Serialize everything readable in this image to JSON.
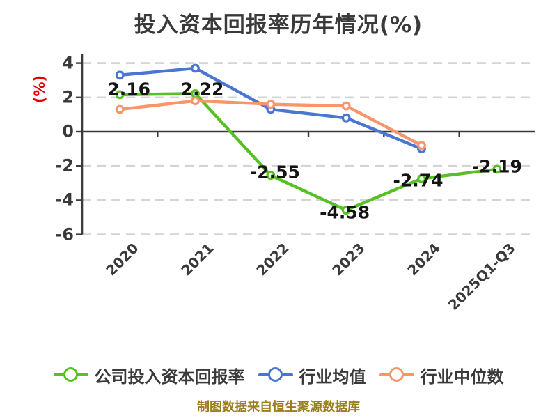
{
  "title": "投入资本回报率历年情况(%)",
  "ylabel": "(%)",
  "source_note": "制图数据来自恒生聚源数据库",
  "colors": {
    "title_text": "#3a3a3a",
    "axis": "#3b3b3b",
    "grid": "#d4d4d4",
    "tick_text": "#3a3a3a",
    "data_label": "#141414",
    "ylabel_red": "#e40000",
    "footer_gold": "#9c7e1c",
    "series_green": "#55c122",
    "series_blue": "#4876d0",
    "series_orange": "#f6966a",
    "background": "#ffffff"
  },
  "chart_data": {
    "type": "line",
    "title": "投入资本回报率历年情况(%)",
    "xlabel": "",
    "ylabel": "(%)",
    "categories": [
      "2020",
      "2021",
      "2022",
      "2023",
      "2024",
      "2025Q1-Q3"
    ],
    "y_ticks": [
      4,
      2,
      0,
      -2,
      -4,
      -6
    ],
    "y_tick_labels": [
      "4",
      "2",
      "0",
      "-2",
      "-4",
      "-6"
    ],
    "ylim": [
      -6,
      4.5
    ],
    "grid": "horizontal-dashed",
    "legend_position": "bottom",
    "series": [
      {
        "name": "公司投入资本回报率",
        "color": "#55c122",
        "values": [
          2.16,
          2.22,
          -2.55,
          -4.58,
          -2.74,
          -2.19
        ],
        "labels": [
          "2.16",
          "2.22",
          "-2.55",
          "-4.58",
          "-2.74",
          "-2.19"
        ]
      },
      {
        "name": "行业均值",
        "color": "#4876d0",
        "values": [
          3.3,
          3.7,
          1.3,
          0.8,
          -1.0,
          null
        ],
        "labels": []
      },
      {
        "name": "行业中位数",
        "color": "#f6966a",
        "values": [
          1.3,
          1.8,
          1.6,
          1.5,
          -0.8,
          null
        ],
        "labels": []
      }
    ]
  }
}
